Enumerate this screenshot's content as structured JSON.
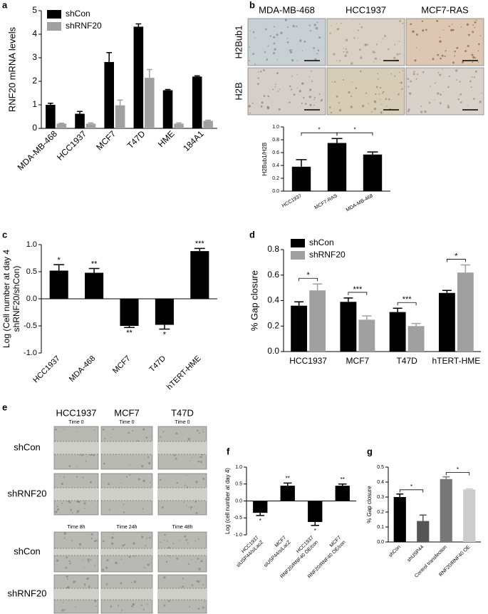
{
  "images": [
    {
      "panel": "b",
      "columns": [
        "MDA-MB-468",
        "HCC1937",
        "MCF7-RAS"
      ],
      "rows": [
        "H2Bub1",
        "H2B"
      ]
    },
    {
      "panel": "e",
      "columns": [
        "HCC1937",
        "MCF7",
        "T47D"
      ],
      "rows": [
        "shCon",
        "shRNF20",
        "shCon",
        "shRNF20"
      ],
      "times": [
        [
          "Time 0",
          "Time 0",
          "Time 0"
        ],
        [
          "Time 8h",
          "Time 24h",
          "Time 48h"
        ]
      ]
    }
  ],
  "chart_data": [
    {
      "panel": "a",
      "type": "bar",
      "ylabel": "RNF20 mRNA levels",
      "categories": [
        "MDA-MB-468",
        "HCC1937",
        "MCF7",
        "T47D",
        "HME",
        "184A1"
      ],
      "series": [
        {
          "name": "shCon",
          "color": "#000000",
          "values": [
            1.0,
            0.62,
            2.82,
            4.32,
            1.62,
            2.2
          ],
          "errors": [
            0.07,
            0.1,
            0.4,
            0.12,
            0.03,
            0.03
          ]
        },
        {
          "name": "shRNF20",
          "color": "#a0a0a0",
          "values": [
            0.2,
            0.2,
            0.98,
            2.15,
            0.2,
            0.32
          ],
          "errors": [
            0.02,
            0.03,
            0.22,
            0.35,
            0.03,
            0.03
          ]
        }
      ],
      "ylim": [
        0,
        5
      ],
      "yticks": [
        0,
        1,
        2,
        3,
        4,
        5
      ]
    },
    {
      "type": "bar",
      "ylabel": "H2Bub1/H2B",
      "categories": [
        "HCC1937",
        "MCF7-RAS",
        "MDA-MB-468"
      ],
      "values": [
        0.38,
        0.75,
        0.57
      ],
      "errors": [
        0.11,
        0.07,
        0.04
      ],
      "color": "#000000",
      "ylim": [
        0,
        1
      ],
      "yticks": [
        {
          "value": 0,
          "label": "0.0"
        },
        0.2,
        0.4,
        0.6,
        0.8,
        {
          "value": 1,
          "label": "1.0"
        }
      ],
      "significance": [
        "*",
        "*"
      ]
    },
    {
      "panel": "c",
      "type": "bar",
      "ylabel": [
        "Log (Cell number at day 4",
        "shRNF20/shCon)"
      ],
      "categories": [
        "HCC1937",
        "MDA-468",
        "MCF7",
        "T47D",
        "hTERT-HME"
      ],
      "values": [
        0.52,
        0.48,
        -0.5,
        -0.48,
        0.88
      ],
      "errors": [
        0.11,
        0.08,
        0.03,
        0.08,
        0.05
      ],
      "color": "#000000",
      "ylim": [
        -1,
        1
      ],
      "yticks": [
        {
          "value": -1,
          "label": "-1.0"
        },
        -0.5,
        {
          "value": 0,
          "label": "0.0"
        },
        0.5,
        {
          "value": 1,
          "label": "1.0"
        }
      ],
      "significance": [
        "*",
        "**",
        "**",
        "*",
        "***"
      ]
    },
    {
      "panel": "d",
      "type": "bar",
      "ylabel": "% Gap closure",
      "categories": [
        "HCC1937",
        "MCF7",
        "T47D",
        "hTERT-HME"
      ],
      "series": [
        {
          "name": "shCon",
          "color": "#000000",
          "values": [
            0.36,
            0.39,
            0.31,
            0.46
          ],
          "errors": [
            0.03,
            0.03,
            0.03,
            0.02
          ]
        },
        {
          "name": "shRNF20",
          "color": "#a0a0a0",
          "values": [
            0.48,
            0.25,
            0.2,
            0.62
          ],
          "errors": [
            0.05,
            0.03,
            0.02,
            0.06
          ]
        }
      ],
      "ylim": [
        0,
        0.8
      ],
      "yticks": [
        {
          "value": 0,
          "label": "0.0"
        },
        0.2,
        0.4,
        0.6,
        0.8
      ],
      "significance": [
        "*",
        "***",
        "***",
        "*"
      ]
    },
    {
      "panel": "f",
      "type": "bar",
      "ylabel": "Log (cell number at day 4)",
      "categories": [
        [
          "HCC1937",
          "siUSP44/siLacZ"
        ],
        [
          "MCF7",
          "siUSP44/siLacZ"
        ],
        [
          "HCC1937",
          "RNF20/RNF40 OE/con"
        ],
        [
          "MCF7",
          "RNF20/RNF40 OE/con"
        ]
      ],
      "values": [
        -0.35,
        0.45,
        -0.62,
        0.45
      ],
      "errors": [
        0.08,
        0.08,
        0.1,
        0.05
      ],
      "color": "#000000",
      "ylim": [
        -1,
        1
      ],
      "yticks": [
        {
          "value": -1,
          "label": "-1.0"
        },
        -0.5,
        {
          "value": 0,
          "label": "0.0"
        },
        0.5,
        {
          "value": 1,
          "label": "1.0"
        }
      ],
      "significance": [
        "*",
        "**",
        "*",
        "**"
      ]
    },
    {
      "panel": "g",
      "type": "bar",
      "ylabel": "% Gap closure",
      "categories": [
        "shCon",
        "shUSP44",
        "Control transfection",
        "RNF20/RNF40 OE"
      ],
      "values": [
        0.3,
        0.14,
        0.42,
        0.35
      ],
      "errors": [
        0.02,
        0.04,
        0.015,
        0.005
      ],
      "colors": [
        "#000000",
        "#555555",
        "#777777",
        "#cccccc"
      ],
      "ylim": [
        0,
        0.5
      ],
      "yticks": [
        {
          "value": 0,
          "label": "0.0"
        },
        0.1,
        0.2,
        0.3,
        0.4,
        0.5
      ],
      "significance": [
        "*",
        "*"
      ]
    }
  ]
}
